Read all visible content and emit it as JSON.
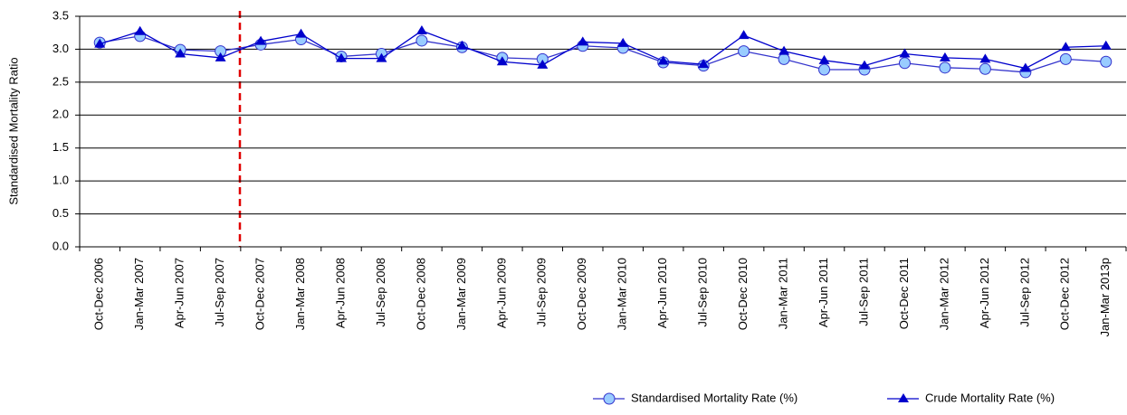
{
  "chart_data": {
    "type": "line",
    "y_label": "Standardised Mortality Ratio",
    "categories": [
      "Oct-Dec 2006",
      "Jan-Mar 2007",
      "Apr-Jun 2007",
      "Jul-Sep 2007",
      "Oct-Dec 2007",
      "Jan-Mar 2008",
      "Apr-Jun 2008",
      "Jul-Sep 2008",
      "Oct-Dec 2008",
      "Jan-Mar 2009",
      "Apr-Jun 2009",
      "Jul-Sep 2009",
      "Oct-Dec 2009",
      "Jan-Mar 2010",
      "Apr-Jun 2010",
      "Jul-Sep 2010",
      "Oct-Dec 2010",
      "Jan-Mar 2011",
      "Apr-Jun 2011",
      "Jul-Sep 2011",
      "Oct-Dec 2011",
      "Jan-Mar 2012",
      "Apr-Jun 2012",
      "Jul-Sep 2012",
      "Oct-Dec 2012",
      "Jan-Mar 2013p"
    ],
    "series": [
      {
        "name": "Standardised Mortality Rate (%)",
        "color": "#3333cc",
        "marker": "circle",
        "marker_fill": "#99ccff",
        "values": [
          3.1,
          3.2,
          2.99,
          2.97,
          3.07,
          3.15,
          2.89,
          2.93,
          3.13,
          3.03,
          2.87,
          2.85,
          3.05,
          3.02,
          2.8,
          2.75,
          2.97,
          2.85,
          2.69,
          2.69,
          2.79,
          2.72,
          2.7,
          2.65,
          2.85,
          2.81
        ]
      },
      {
        "name": "Crude Mortality Rate (%)",
        "color": "#0000cc",
        "marker": "triangle",
        "marker_fill": "#0000cc",
        "values": [
          3.08,
          3.27,
          2.93,
          2.87,
          3.12,
          3.23,
          2.86,
          2.86,
          3.28,
          3.05,
          2.81,
          2.76,
          3.11,
          3.09,
          2.82,
          2.77,
          3.21,
          2.97,
          2.83,
          2.75,
          2.93,
          2.87,
          2.85,
          2.71,
          3.03,
          3.05
        ]
      }
    ],
    "ylim": [
      0,
      3.5
    ],
    "yticks": [
      {
        "value": 0,
        "label": "0.0"
      },
      0.5,
      {
        "value": 1,
        "label": "1.0"
      },
      1.5,
      {
        "value": 2,
        "label": "2.0"
      },
      2.5,
      {
        "value": 3,
        "label": "3.0"
      },
      3.5
    ],
    "grid": true,
    "legend": "bottom-right"
  }
}
